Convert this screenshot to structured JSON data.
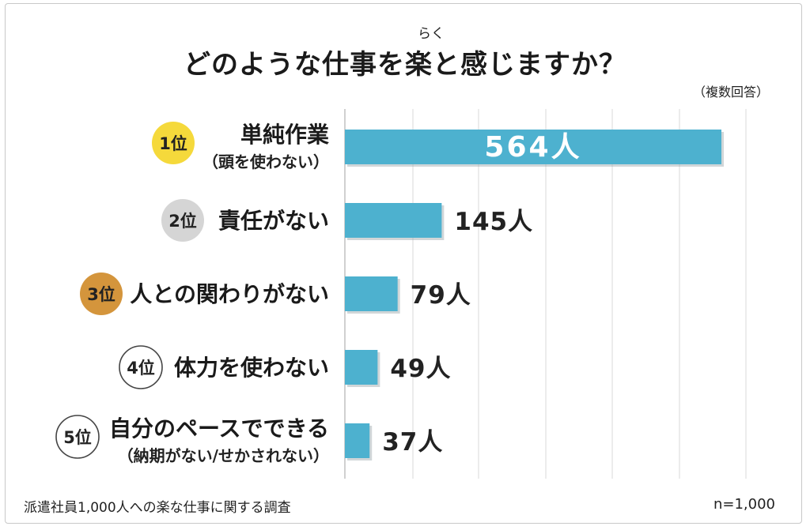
{
  "title": "どのような仕事を楽と感じますか？",
  "title_ruby": "らく",
  "note": "（複数回答）",
  "footer": {
    "source": "派遣社員1,000人への楽な仕事に関する調査",
    "sample": "n=1,000"
  },
  "colors": {
    "bar": "#4db1cf",
    "rank1": "#f5d93b",
    "rank2": "#d5d5d5",
    "rank3": "#d4953c",
    "rank_other": "#ffffff",
    "grid": "#d9d9d9"
  },
  "chart_data": {
    "type": "bar",
    "orientation": "horizontal",
    "categories": [
      "単純作業",
      "責任がない",
      "人との関わりがない",
      "体力を使わない",
      "自分のペースでできる"
    ],
    "sublabels": [
      "（頭を使わない）",
      "",
      "",
      "",
      "（納期がない/せかされない）"
    ],
    "ranks": [
      "1位",
      "2位",
      "3位",
      "4位",
      "5位"
    ],
    "values": [
      564,
      145,
      79,
      49,
      37
    ],
    "value_labels": [
      "564人",
      "145人",
      "79人",
      "49人",
      "37人"
    ],
    "xlim": [
      0,
      600
    ],
    "grid": true
  }
}
